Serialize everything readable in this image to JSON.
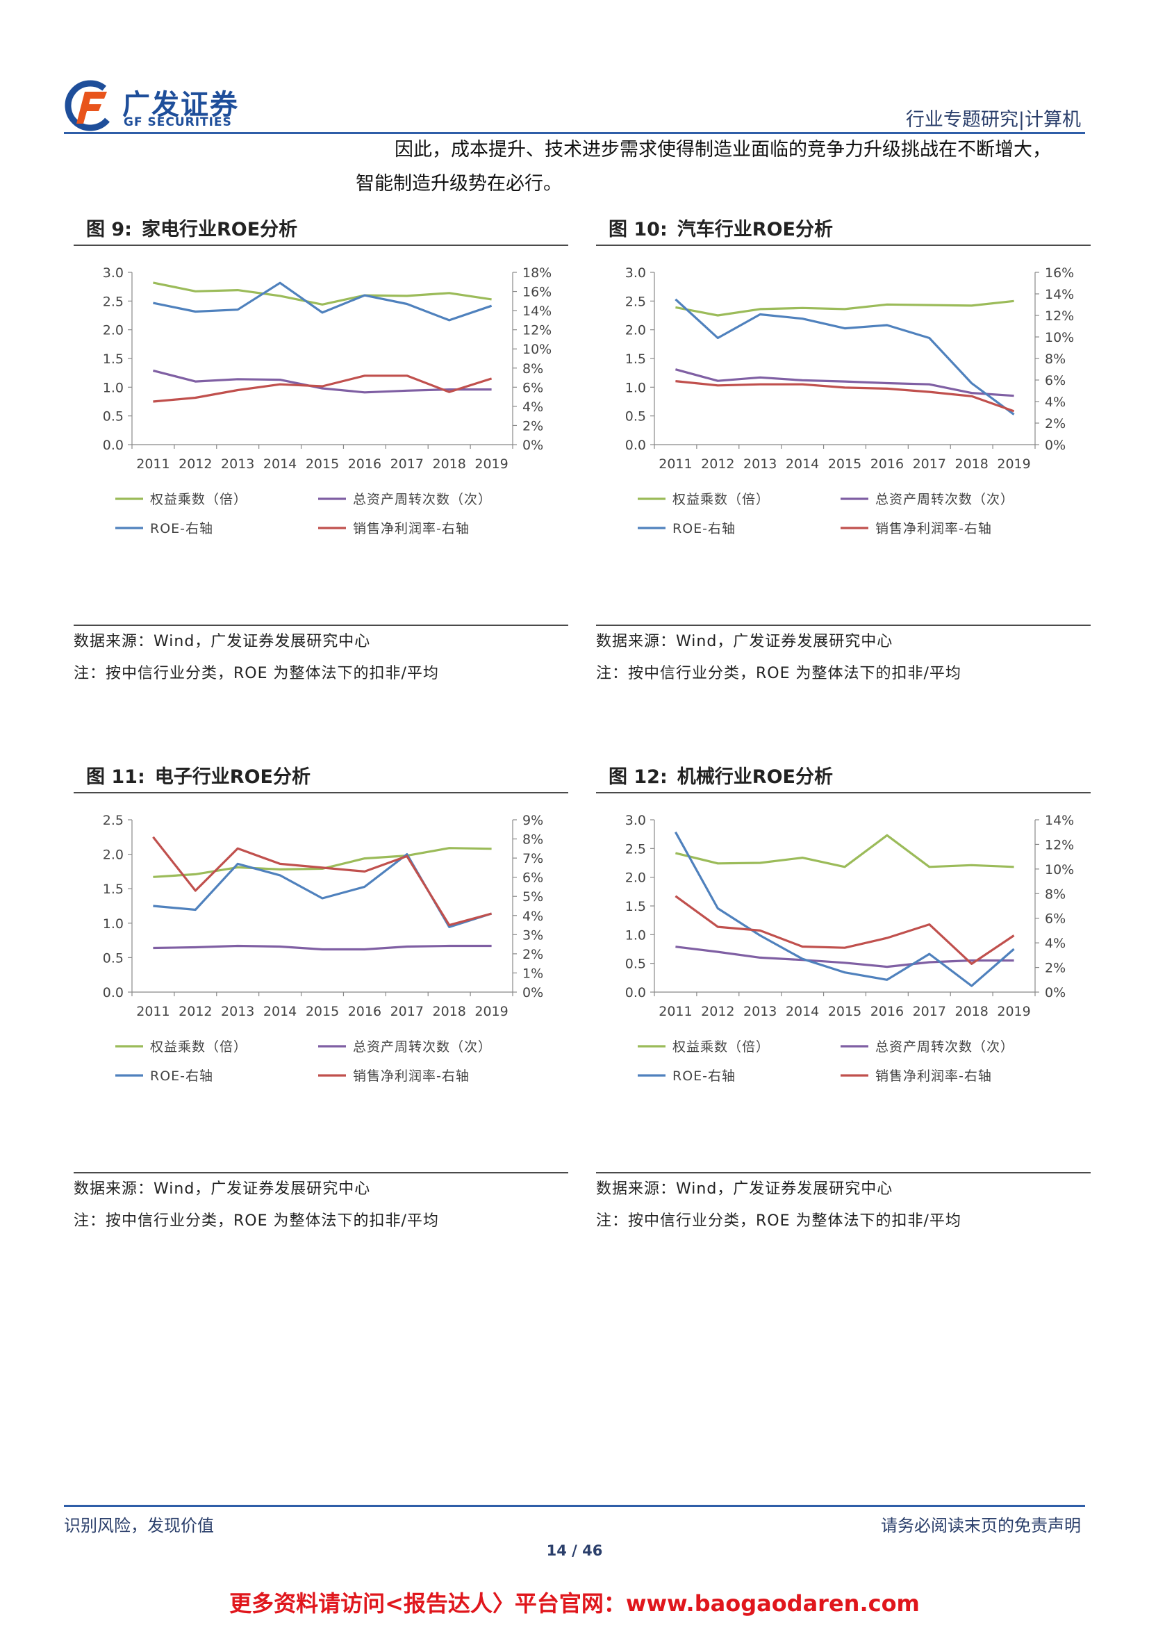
{
  "header": {
    "logo_cn": "广发证券",
    "logo_en": "GF SECURITIES",
    "category": "行业专题研究|计算机"
  },
  "body": {
    "line1": "因此，成本提升、技术进步需求使得制造业面临的竞争力升级挑战在不断增大，",
    "line2": "智能制造升级势在必行。"
  },
  "colors": {
    "green": "#9bbb59",
    "purple": "#7f5fa3",
    "blue": "#4f81bd",
    "red": "#c0504d",
    "brand": "#1e4e9a"
  },
  "figures": [
    {
      "label": "图 9:",
      "title": "家电行业ROE分析",
      "source": "数据来源：Wind，广发证券发展研究中心",
      "note": "注：按中信行业分类，ROE 为整体法下的扣非/平均"
    },
    {
      "label": "图 10:",
      "title": "汽车行业ROE分析",
      "source": "数据来源：Wind，广发证券发展研究中心",
      "note": "注：按中信行业分类，ROE 为整体法下的扣非/平均"
    },
    {
      "label": "图 11:",
      "title": "电子行业ROE分析",
      "source": "数据来源：Wind，广发证券发展研究中心",
      "note": "注：按中信行业分类，ROE 为整体法下的扣非/平均"
    },
    {
      "label": "图 12:",
      "title": "机械行业ROE分析",
      "source": "数据来源：Wind，广发证券发展研究中心",
      "note": "注：按中信行业分类，ROE 为整体法下的扣非/平均"
    }
  ],
  "chart_data": [
    {
      "type": "line",
      "x": [
        "2011",
        "2012",
        "2013",
        "2014",
        "2015",
        "2016",
        "2017",
        "2018",
        "2019"
      ],
      "y_left": {
        "min": 0,
        "max": 3.0,
        "ticks": [
          "0.0",
          "0.5",
          "1.0",
          "1.5",
          "2.0",
          "2.5",
          "3.0"
        ]
      },
      "y_right": {
        "min": 0,
        "max": 18,
        "ticks": [
          "0%",
          "2%",
          "4%",
          "6%",
          "8%",
          "10%",
          "12%",
          "14%",
          "16%",
          "18%"
        ]
      },
      "legend": [
        "权益乘数（倍）",
        "总资产周转次数（次）",
        "ROE-右轴",
        "销售净利润率-右轴"
      ],
      "series": [
        {
          "name": "权益乘数（倍）",
          "axis": "left",
          "values": [
            2.82,
            2.67,
            2.69,
            2.59,
            2.44,
            2.6,
            2.59,
            2.64,
            2.53
          ]
        },
        {
          "name": "总资产周转次数（次）",
          "axis": "left",
          "values": [
            1.29,
            1.1,
            1.14,
            1.13,
            0.98,
            0.91,
            0.94,
            0.96,
            0.96
          ]
        },
        {
          "name": "ROE-右轴",
          "axis": "right",
          "values": [
            14.8,
            13.9,
            14.1,
            16.9,
            13.8,
            15.6,
            14.7,
            13.0,
            14.5
          ]
        },
        {
          "name": "销售净利润率-右轴",
          "axis": "right",
          "values": [
            4.5,
            4.9,
            5.7,
            6.3,
            6.1,
            7.2,
            7.2,
            5.5,
            6.9
          ]
        }
      ]
    },
    {
      "type": "line",
      "x": [
        "2011",
        "2012",
        "2013",
        "2014",
        "2015",
        "2016",
        "2017",
        "2018",
        "2019"
      ],
      "y_left": {
        "min": 0,
        "max": 3.0,
        "ticks": [
          "0.0",
          "0.5",
          "1.0",
          "1.5",
          "2.0",
          "2.5",
          "3.0"
        ]
      },
      "y_right": {
        "min": 0,
        "max": 16,
        "ticks": [
          "0%",
          "2%",
          "4%",
          "6%",
          "8%",
          "10%",
          "12%",
          "14%",
          "16%"
        ]
      },
      "legend": [
        "权益乘数（倍）",
        "总资产周转次数（次）",
        "ROE-右轴",
        "销售净利润率-右轴"
      ],
      "series": [
        {
          "name": "权益乘数（倍）",
          "axis": "left",
          "values": [
            2.39,
            2.25,
            2.36,
            2.38,
            2.36,
            2.44,
            2.43,
            2.42,
            2.5
          ]
        },
        {
          "name": "总资产周转次数（次）",
          "axis": "left",
          "values": [
            1.31,
            1.11,
            1.17,
            1.12,
            1.1,
            1.07,
            1.05,
            0.9,
            0.85
          ]
        },
        {
          "name": "ROE-右轴",
          "axis": "right",
          "values": [
            13.5,
            9.9,
            12.1,
            11.7,
            10.8,
            11.1,
            9.9,
            5.7,
            2.8
          ]
        },
        {
          "name": "销售净利润率-右轴",
          "axis": "right",
          "values": [
            5.9,
            5.5,
            5.6,
            5.6,
            5.3,
            5.2,
            4.9,
            4.5,
            3.1
          ]
        }
      ]
    },
    {
      "type": "line",
      "x": [
        "2011",
        "2012",
        "2013",
        "2014",
        "2015",
        "2016",
        "2017",
        "2018",
        "2019"
      ],
      "y_left": {
        "min": 0,
        "max": 2.5,
        "ticks": [
          "0.0",
          "0.5",
          "1.0",
          "1.5",
          "2.0",
          "2.5"
        ]
      },
      "y_right": {
        "min": 0,
        "max": 9,
        "ticks": [
          "0%",
          "1%",
          "2%",
          "3%",
          "4%",
          "5%",
          "6%",
          "7%",
          "8%",
          "9%"
        ]
      },
      "legend": [
        "权益乘数（倍）",
        "总资产周转次数（次）",
        "ROE-右轴",
        "销售净利润率-右轴"
      ],
      "series": [
        {
          "name": "权益乘数（倍）",
          "axis": "left",
          "values": [
            1.67,
            1.71,
            1.81,
            1.78,
            1.79,
            1.94,
            1.98,
            2.09,
            2.08
          ]
        },
        {
          "name": "总资产周转次数（次）",
          "axis": "left",
          "values": [
            0.64,
            0.65,
            0.67,
            0.66,
            0.62,
            0.62,
            0.66,
            0.67,
            0.67
          ]
        },
        {
          "name": "ROE-右轴",
          "axis": "right",
          "values": [
            4.5,
            4.3,
            6.7,
            6.1,
            4.9,
            5.5,
            7.2,
            3.4,
            4.1
          ]
        },
        {
          "name": "销售净利润率-右轴",
          "axis": "right",
          "values": [
            8.1,
            5.3,
            7.5,
            6.7,
            6.5,
            6.3,
            7.1,
            3.5,
            4.1
          ]
        }
      ]
    },
    {
      "type": "line",
      "x": [
        "2011",
        "2012",
        "2013",
        "2014",
        "2015",
        "2016",
        "2017",
        "2018",
        "2019"
      ],
      "y_left": {
        "min": 0,
        "max": 3.0,
        "ticks": [
          "0.0",
          "0.5",
          "1.0",
          "1.5",
          "2.0",
          "2.5",
          "3.0"
        ]
      },
      "y_right": {
        "min": 0,
        "max": 14,
        "ticks": [
          "0%",
          "2%",
          "4%",
          "6%",
          "8%",
          "10%",
          "12%",
          "14%"
        ]
      },
      "legend": [
        "权益乘数（倍）",
        "总资产周转次数（次）",
        "ROE-右轴",
        "销售净利润率-右轴"
      ],
      "series": [
        {
          "name": "权益乘数（倍）",
          "axis": "left",
          "values": [
            2.42,
            2.24,
            2.25,
            2.34,
            2.18,
            2.73,
            2.18,
            2.21,
            2.18
          ]
        },
        {
          "name": "总资产周转次数（次）",
          "axis": "left",
          "values": [
            0.79,
            0.7,
            0.6,
            0.56,
            0.51,
            0.44,
            0.52,
            0.55,
            0.55
          ]
        },
        {
          "name": "ROE-右轴",
          "axis": "right",
          "values": [
            13.0,
            6.8,
            4.6,
            2.7,
            1.6,
            1.0,
            3.1,
            0.5,
            3.5
          ]
        },
        {
          "name": "销售净利润率-右轴",
          "axis": "right",
          "values": [
            7.8,
            5.3,
            5.0,
            3.7,
            3.6,
            4.4,
            5.5,
            2.3,
            4.6
          ]
        }
      ]
    }
  ],
  "footer": {
    "left": "识别风险，发现价值",
    "right": "请务必阅读末页的免责声明",
    "page": "14 / 46",
    "promo": "更多资料请访问<报告达人〉平台官网：www.baogaodaren.com"
  }
}
